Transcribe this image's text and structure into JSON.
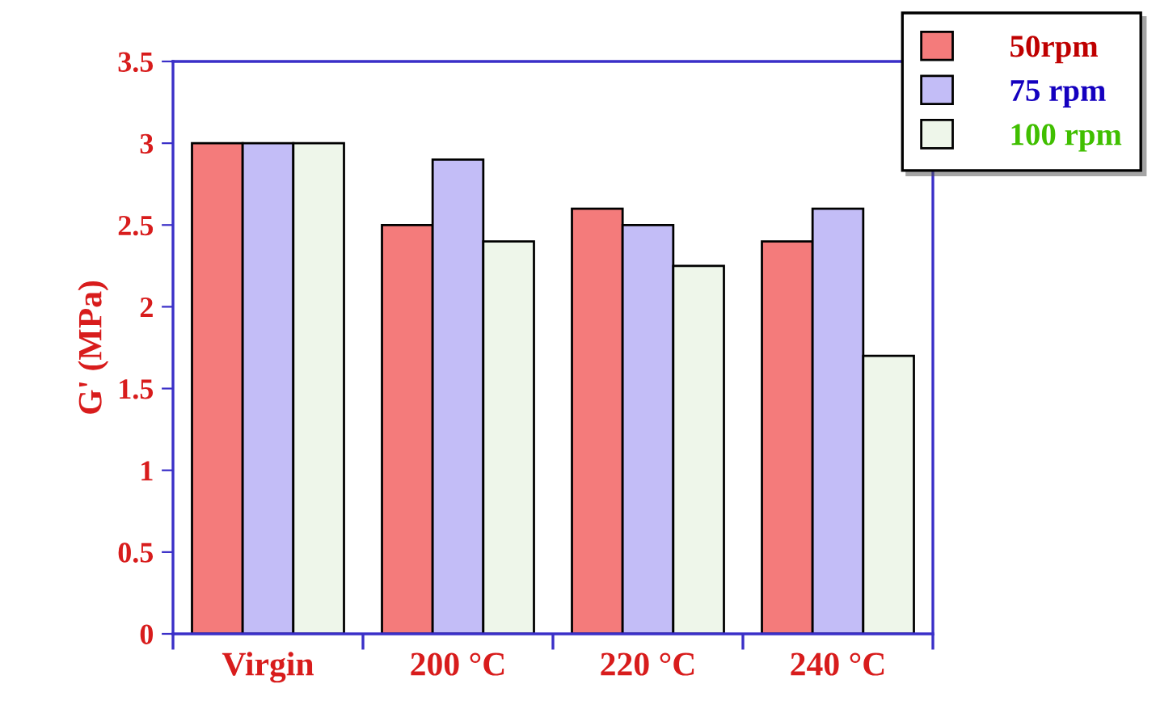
{
  "chart_data": {
    "type": "bar",
    "ylabel": "G' (MPa)",
    "categories": [
      "Virgin",
      "200 °C",
      "220 °C",
      "240 °C"
    ],
    "series": [
      {
        "name": "50rpm",
        "color": "#f47b7b",
        "values": [
          3,
          2.5,
          2.6,
          2.4
        ]
      },
      {
        "name": "75 rpm",
        "color": "#c3bdf7",
        "values": [
          3,
          2.9,
          2.5,
          2.6
        ]
      },
      {
        "name": "100 rpm",
        "color": "#eef6ea",
        "values": [
          3,
          2.4,
          2.25,
          1.7
        ]
      }
    ],
    "ylim": [
      0,
      3.5
    ],
    "yticks": [
      0,
      0.5,
      1,
      1.5,
      2,
      2.5,
      3,
      3.5
    ],
    "grid": false,
    "legend": "top right"
  }
}
